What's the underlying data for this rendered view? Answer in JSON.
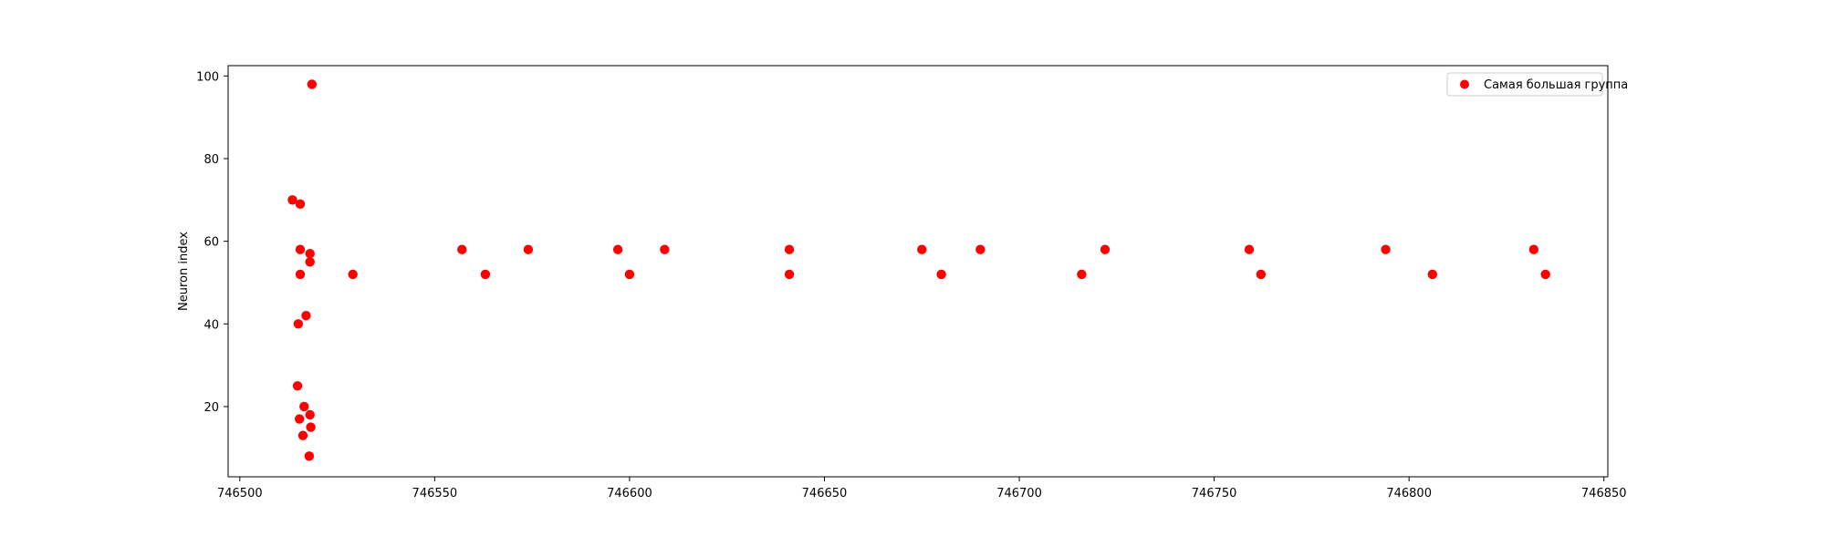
{
  "chart_data": {
    "type": "scatter",
    "title": "",
    "xlabel": "",
    "ylabel": "Neuron index",
    "xlim": [
      746497,
      746851
    ],
    "ylim": [
      3,
      102.5
    ],
    "xticks": [
      746500,
      746550,
      746600,
      746650,
      746700,
      746750,
      746800,
      746850
    ],
    "yticks": [
      20,
      40,
      60,
      80,
      100
    ],
    "grid": false,
    "legend_position": "top-right",
    "colors": {
      "series": "#ff0000",
      "axes": "#000000",
      "legend_border": "#cccccc"
    },
    "series": [
      {
        "name": "Самая большая группа",
        "marker": "circle",
        "points": [
          {
            "x": 746513.5,
            "y": 70
          },
          {
            "x": 746515.5,
            "y": 69
          },
          {
            "x": 746518.5,
            "y": 98
          },
          {
            "x": 746515.5,
            "y": 58
          },
          {
            "x": 746518,
            "y": 57
          },
          {
            "x": 746518,
            "y": 55
          },
          {
            "x": 746515.5,
            "y": 52
          },
          {
            "x": 746517,
            "y": 42
          },
          {
            "x": 746515,
            "y": 40
          },
          {
            "x": 746514.8,
            "y": 25
          },
          {
            "x": 746516.5,
            "y": 20
          },
          {
            "x": 746518,
            "y": 18
          },
          {
            "x": 746515.3,
            "y": 17
          },
          {
            "x": 746518.2,
            "y": 15
          },
          {
            "x": 746516.2,
            "y": 13
          },
          {
            "x": 746517.8,
            "y": 8
          },
          {
            "x": 746529,
            "y": 52
          },
          {
            "x": 746557,
            "y": 58
          },
          {
            "x": 746563,
            "y": 52
          },
          {
            "x": 746574,
            "y": 58
          },
          {
            "x": 746597,
            "y": 58
          },
          {
            "x": 746600,
            "y": 52
          },
          {
            "x": 746609,
            "y": 58
          },
          {
            "x": 746641,
            "y": 58
          },
          {
            "x": 746641,
            "y": 52
          },
          {
            "x": 746675,
            "y": 58
          },
          {
            "x": 746680,
            "y": 52
          },
          {
            "x": 746690,
            "y": 58
          },
          {
            "x": 746716,
            "y": 52
          },
          {
            "x": 746722,
            "y": 58
          },
          {
            "x": 746759,
            "y": 58
          },
          {
            "x": 746762,
            "y": 52
          },
          {
            "x": 746794,
            "y": 58
          },
          {
            "x": 746806,
            "y": 52
          },
          {
            "x": 746832,
            "y": 58
          },
          {
            "x": 746835,
            "y": 52
          }
        ]
      }
    ]
  }
}
